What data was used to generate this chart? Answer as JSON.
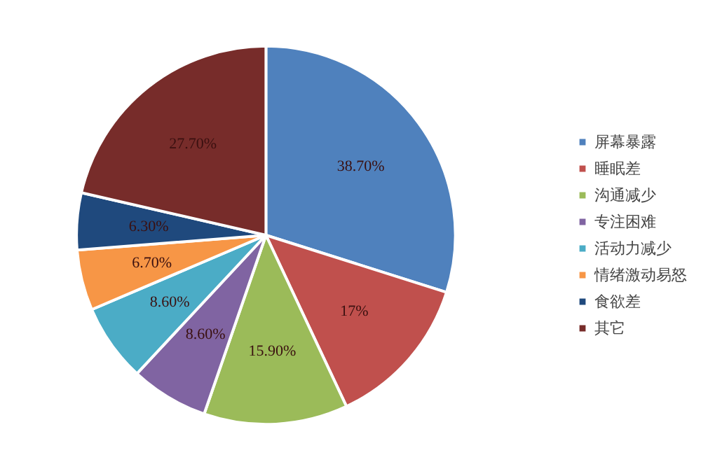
{
  "chart_data": {
    "type": "pie",
    "categories": [
      "屏幕暴露",
      "睡眠差",
      "沟通减少",
      "专注困难",
      "活动力减少",
      "情绪激动易怒",
      "食欲差",
      "其它"
    ],
    "values": [
      38.7,
      17,
      15.9,
      8.6,
      8.6,
      6.7,
      6.3,
      27.7
    ],
    "value_labels": [
      "38.70%",
      "17%",
      "15.90%",
      "8.60%",
      "8.60%",
      "6.70%",
      "6.30%",
      "27.70%"
    ],
    "colors": [
      "#4f81bd",
      "#c0504d",
      "#9bbb59",
      "#8064a2",
      "#4bacc6",
      "#f79646",
      "#1f497d",
      "#772c2a"
    ],
    "legend": "right"
  }
}
